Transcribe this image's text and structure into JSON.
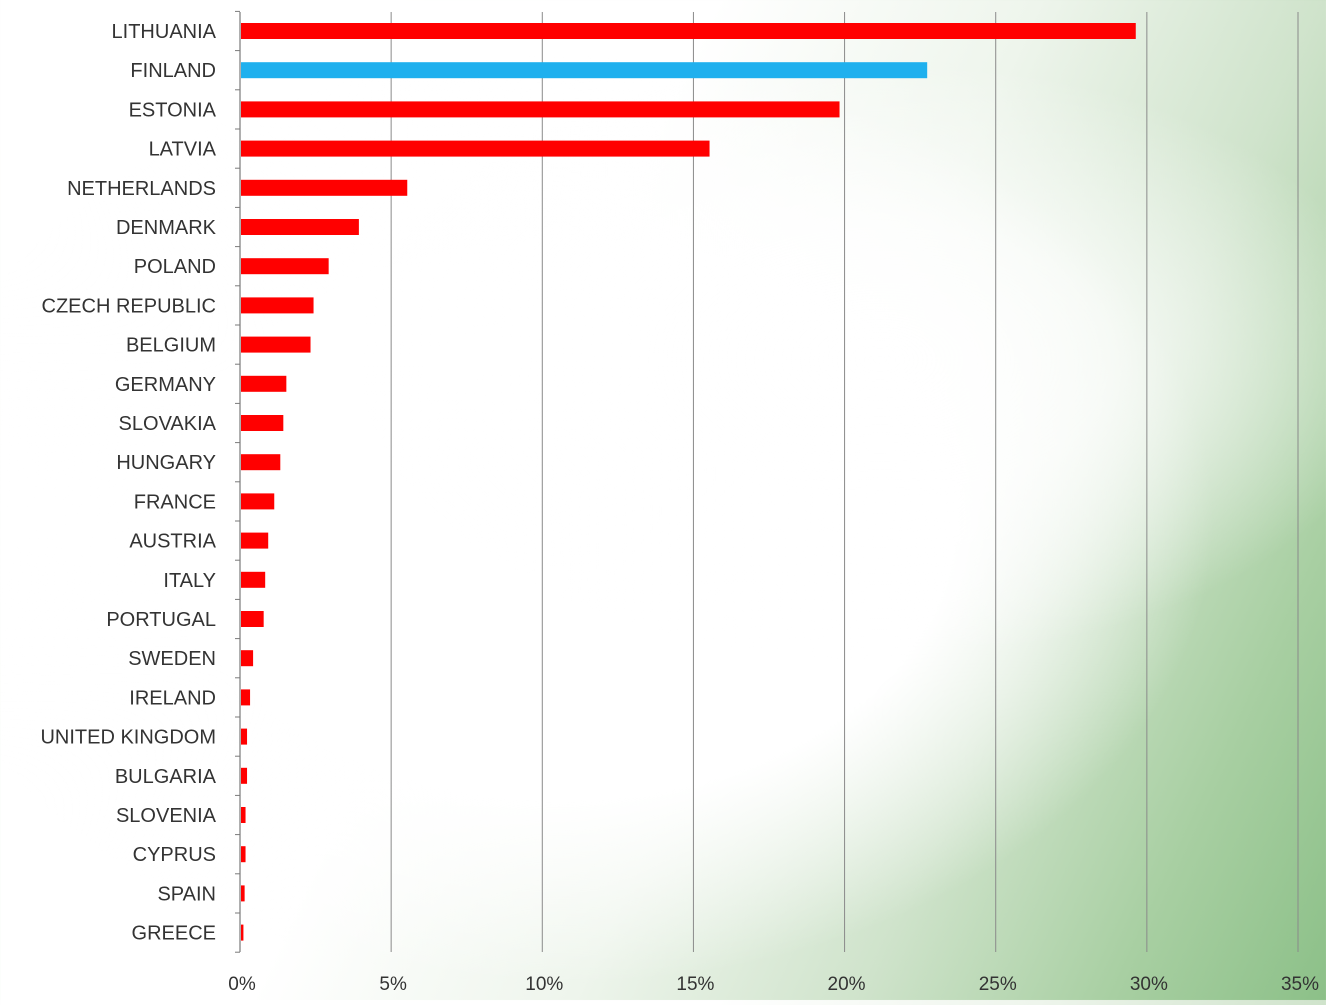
{
  "chart_data": {
    "type": "bar",
    "orientation": "horizontal",
    "title": "",
    "xlabel": "",
    "ylabel": "",
    "xlim": [
      0,
      35
    ],
    "x_ticks": [
      {
        "value": 0,
        "label": "0%"
      },
      {
        "value": 5,
        "label": "5%"
      },
      {
        "value": 10,
        "label": "10%"
      },
      {
        "value": 15,
        "label": "15%"
      },
      {
        "value": 20,
        "label": "20%"
      },
      {
        "value": 25,
        "label": "25%"
      },
      {
        "value": 30,
        "label": "30%"
      },
      {
        "value": 35,
        "label": "35%"
      }
    ],
    "grid": "vertical",
    "legend": "none",
    "default_color": "#ff0000",
    "highlight_color": "#1fb0ee",
    "highlight_category": "FINLAND",
    "categories": [
      "LITHUANIA",
      "FINLAND",
      "ESTONIA",
      "LATVIA",
      "NETHERLANDS",
      "DENMARK",
      "POLAND",
      "CZECH REPUBLIC",
      "BELGIUM",
      "GERMANY",
      "SLOVAKIA",
      "HUNGARY",
      "FRANCE",
      "AUSTRIA",
      "ITALY",
      "PORTUGAL",
      "SWEDEN",
      "IRELAND",
      "UNITED KINGDOM",
      "BULGARIA",
      "SLOVENIA",
      "CYPRUS",
      "SPAIN",
      "GREECE"
    ],
    "values": [
      29.6,
      22.7,
      19.8,
      15.5,
      5.5,
      3.9,
      2.9,
      2.4,
      2.3,
      1.5,
      1.4,
      1.3,
      1.1,
      0.9,
      0.8,
      0.75,
      0.4,
      0.3,
      0.2,
      0.2,
      0.15,
      0.15,
      0.12,
      0.08
    ]
  }
}
